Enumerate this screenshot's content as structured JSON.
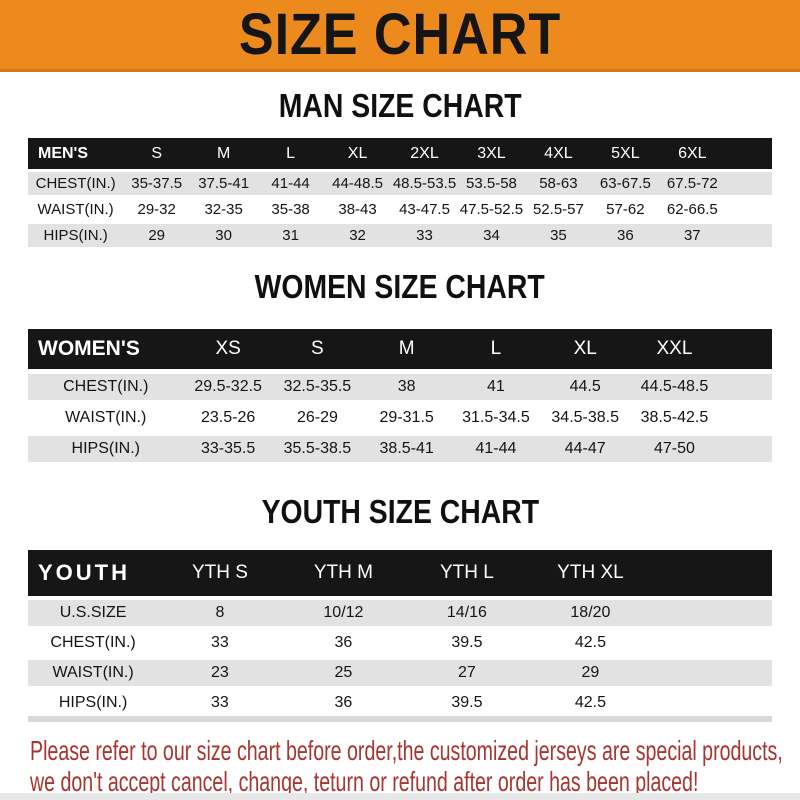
{
  "banner": {
    "title": "SIZE CHART"
  },
  "sections": [
    {
      "heading": "MAN SIZE CHART",
      "header_label": "MEN'S",
      "columns": [
        "S",
        "M",
        "L",
        "XL",
        "2XL",
        "3XL",
        "4XL",
        "5XL",
        "6XL"
      ],
      "rows": [
        {
          "label": "CHEST(IN.)",
          "values": [
            "35-37.5",
            "37.5-41",
            "41-44",
            "44-48.5",
            "48.5-53.5",
            "53.5-58",
            "58-63",
            "63-67.5",
            "67.5-72"
          ]
        },
        {
          "label": "WAIST(IN.)",
          "values": [
            "29-32",
            "32-35",
            "35-38",
            "38-43",
            "43-47.5",
            "47.5-52.5",
            "52.5-57",
            "57-62",
            "62-66.5"
          ]
        },
        {
          "label": "HIPS(IN.)",
          "values": [
            "29",
            "30",
            "31",
            "32",
            "33",
            "34",
            "35",
            "36",
            "37"
          ]
        }
      ]
    },
    {
      "heading": "WOMEN SIZE CHART",
      "header_label": "WOMEN'S",
      "columns": [
        "XS",
        "S",
        "M",
        "L",
        "XL",
        "XXL"
      ],
      "rows": [
        {
          "label": "CHEST(IN.)",
          "values": [
            "29.5-32.5",
            "32.5-35.5",
            "38",
            "41",
            "44.5",
            "44.5-48.5"
          ]
        },
        {
          "label": "WAIST(IN.)",
          "values": [
            "23.5-26",
            "26-29",
            "29-31.5",
            "31.5-34.5",
            "34.5-38.5",
            "38.5-42.5"
          ]
        },
        {
          "label": "HIPS(IN.)",
          "values": [
            "33-35.5",
            "35.5-38.5",
            "38.5-41",
            "41-44",
            "44-47",
            "47-50"
          ]
        }
      ]
    },
    {
      "heading": "YOUTH SIZE CHART",
      "header_label": "YOUTH",
      "columns": [
        "YTH S",
        "YTH M",
        "YTH L",
        "YTH XL"
      ],
      "rows": [
        {
          "label": "U.S.SIZE",
          "values": [
            "8",
            "10/12",
            "14/16",
            "18/20"
          ]
        },
        {
          "label": "CHEST(IN.)",
          "values": [
            "33",
            "36",
            "39.5",
            "42.5"
          ]
        },
        {
          "label": "WAIST(IN.)",
          "values": [
            "23",
            "25",
            "27",
            "29"
          ]
        },
        {
          "label": "HIPS(IN.)",
          "values": [
            "33",
            "36",
            "39.5",
            "42.5"
          ]
        }
      ]
    }
  ],
  "disclaimer": {
    "line1": "Please refer to our size chart before order,the customized jerseys are special products,",
    "line2": "we don't accept cancel, change, teturn or refund after order has been placed!"
  },
  "colors": {
    "banner_bg": "#EC8A1E",
    "header_bar_bg": "#161616",
    "alt_row_bg": "#E2E2E2",
    "disclaimer_text": "#A93530"
  }
}
